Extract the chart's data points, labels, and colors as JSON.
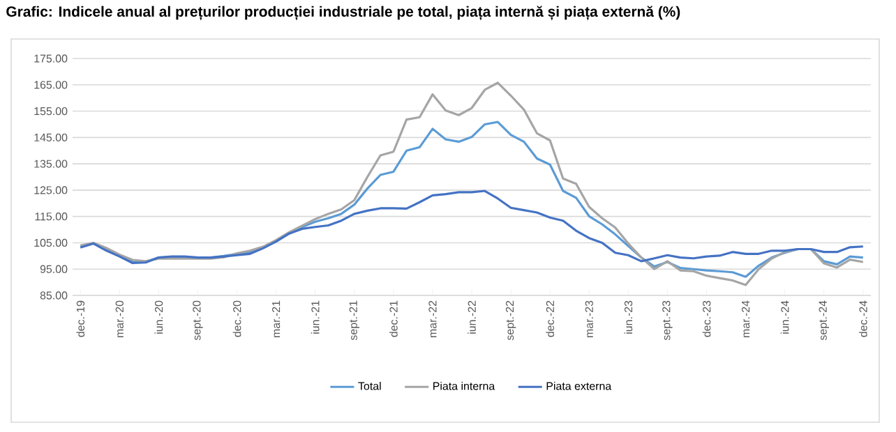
{
  "chart_data": {
    "type": "line",
    "title": "Grafic: Indicele anual al prețurilor producției industriale pe total, piața internă și piața externă (%)",
    "categories": [
      "dec.-19",
      null,
      null,
      "mar.-20",
      null,
      null,
      "iun.-20",
      null,
      null,
      "sept.-20",
      null,
      null,
      "dec.-20",
      null,
      null,
      "mar.-21",
      null,
      null,
      "iun.-21",
      null,
      null,
      "sept.-21",
      null,
      null,
      "dec.-21",
      null,
      null,
      "mar.-22",
      null,
      null,
      "iun.-22",
      null,
      null,
      "sept.-22",
      null,
      null,
      "dec.-22",
      null,
      null,
      "mar.-23",
      null,
      null,
      "iun.-23",
      null,
      null,
      "sept.-23",
      null,
      null,
      "dec.-23",
      null,
      null,
      "mar.-24",
      null,
      null,
      "iun.-24",
      null,
      null,
      "sept.-24",
      null,
      null,
      "dec.-24"
    ],
    "series": [
      {
        "name": "Total",
        "color": "#5b9bd5",
        "values": [
          103.5,
          104.8,
          102.5,
          100,
          97.8,
          97.7,
          99.4,
          99.6,
          99.6,
          99.4,
          99.4,
          100,
          100.8,
          101.5,
          103.2,
          105.5,
          108.5,
          111,
          113,
          114.3,
          116,
          119.5,
          125.6,
          130.8,
          132,
          140,
          141.3,
          148.3,
          144.3,
          143.4,
          145.2,
          150,
          150.9,
          146,
          143.4,
          137,
          134.7,
          124.7,
          122.1,
          115.1,
          112,
          108.2,
          103.8,
          99.4,
          96,
          97.7,
          95.4,
          95,
          94.5,
          94.2,
          93.8,
          92.1,
          96.3,
          99.4,
          101.2,
          102.6,
          102.6,
          98,
          96.8,
          99.8,
          99.4
        ]
      },
      {
        "name": "Piata interna",
        "color": "#a5a5a5",
        "values": [
          104,
          105,
          103,
          100.5,
          98.5,
          98,
          99,
          99,
          99,
          99,
          99,
          99.5,
          101,
          102,
          103.5,
          106,
          109,
          111.5,
          114,
          116,
          117.7,
          121.2,
          130,
          138.2,
          139.6,
          151.8,
          152.7,
          161.4,
          155.3,
          153.5,
          156.2,
          163.1,
          165.8,
          160.9,
          155.6,
          146.6,
          143.9,
          129.4,
          127.4,
          118.6,
          114.3,
          110.8,
          104.7,
          99.4,
          95,
          98,
          94.5,
          94.2,
          92.5,
          91.6,
          90.7,
          89,
          95,
          99,
          101.5,
          102.6,
          102.6,
          97.2,
          95.6,
          98.6,
          97.7
        ]
      },
      {
        "name": "Piata externa",
        "color": "#4472c4",
        "values": [
          103.2,
          104.7,
          102,
          99.8,
          97.3,
          97.5,
          99.4,
          99.8,
          99.8,
          99.4,
          99.4,
          99.8,
          100.3,
          100.8,
          102.9,
          105.5,
          108.5,
          110.3,
          111,
          111.6,
          113.4,
          116,
          117.2,
          118.1,
          118.1,
          118,
          120.4,
          123,
          123.5,
          124.2,
          124.2,
          124.7,
          121.8,
          118.3,
          117.4,
          116.5,
          114.6,
          113.4,
          109.6,
          106.8,
          105,
          101.2,
          100.3,
          98,
          99.1,
          100.3,
          99.4,
          99.1,
          99.8,
          100.1,
          101.5,
          100.8,
          100.8,
          102,
          102,
          102.6,
          102.6,
          101.5,
          101.5,
          103.3,
          103.6
        ]
      }
    ],
    "ylim": [
      85,
      175
    ],
    "yticks": [
      {
        "value": 85,
        "label": "85.00"
      },
      {
        "value": 95,
        "label": "95.00"
      },
      {
        "value": 105,
        "label": "105.00"
      },
      {
        "value": 115,
        "label": "115.00"
      },
      {
        "value": 125,
        "label": "125.00"
      },
      {
        "value": 135,
        "label": "135.00"
      },
      {
        "value": 145,
        "label": "145.00"
      },
      {
        "value": 155,
        "label": "155.00"
      },
      {
        "value": 165,
        "label": "165.00"
      },
      {
        "value": 175,
        "label": "175.00"
      }
    ],
    "grid": "y",
    "legend": "bottom"
  }
}
